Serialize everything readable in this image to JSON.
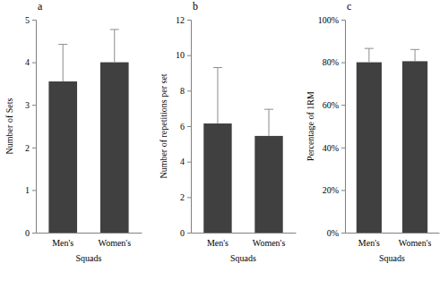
{
  "chart_data": [
    {
      "type": "bar",
      "title": "a",
      "x_label": "Squads",
      "y_label": "Number of Sets",
      "categories": [
        "Men's",
        "Women's"
      ],
      "values": [
        3.55,
        4.0
      ],
      "errors": [
        0.87,
        0.77
      ],
      "color": "#404040",
      "ylim": [
        0,
        5
      ],
      "yticks": [
        0,
        1,
        2,
        3,
        4,
        5
      ]
    },
    {
      "type": "bar",
      "title": "b",
      "x_label": "Squads",
      "y_label": "Number of repetitions per set",
      "categories": [
        "Men's",
        "Women's"
      ],
      "values": [
        6.15,
        5.45
      ],
      "errors": [
        3.15,
        1.5
      ],
      "color": "#404040",
      "ylim": [
        0,
        12
      ],
      "yticks": [
        0,
        2,
        4,
        6,
        8,
        10,
        12
      ]
    },
    {
      "type": "bar",
      "title": "c",
      "x_label": "Squads",
      "y_label": "Percentage of 1RM",
      "categories": [
        "Men's",
        "Women's"
      ],
      "values": [
        80,
        80.5
      ],
      "errors": [
        6.5,
        5.5
      ],
      "color": "#404040",
      "ylim": [
        0,
        100
      ],
      "yticks": [
        {
          "value": 0,
          "label": "0%"
        },
        {
          "value": 20,
          "label": "20%"
        },
        {
          "value": 40,
          "label": "40%"
        },
        {
          "value": 60,
          "label": "60%"
        },
        {
          "value": 80,
          "label": "80%"
        },
        {
          "value": 100,
          "label": "100%"
        }
      ]
    }
  ]
}
